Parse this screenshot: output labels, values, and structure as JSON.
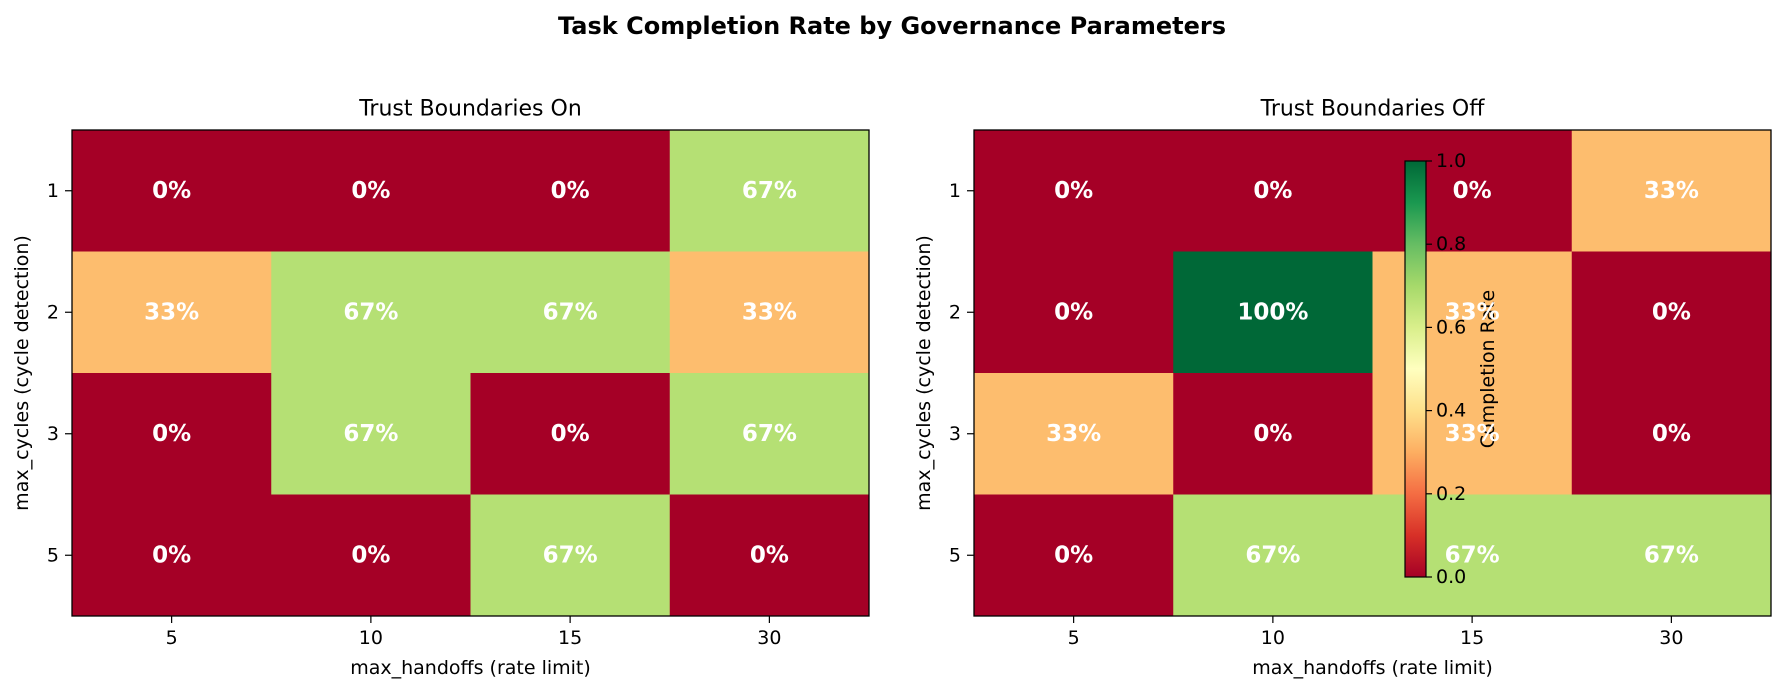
{
  "figure": {
    "title": "Task Completion Rate by Governance Parameters"
  },
  "colorbar": {
    "label": "Completion Rate",
    "ticks": [
      "0.0",
      "0.2",
      "0.4",
      "0.6",
      "0.8",
      "1.0"
    ],
    "range": [
      0.0,
      1.0
    ],
    "colormap": "RdYlGn",
    "placement": "inside right panel, between columns 10 and 15"
  },
  "chart_data": [
    {
      "type": "heatmap",
      "title": "Trust Boundaries On",
      "xlabel": "max_handoffs (rate limit)",
      "ylabel": "max_cycles (cycle detection)",
      "x_categories": [
        "5",
        "10",
        "15",
        "30"
      ],
      "y_categories": [
        "1",
        "2",
        "3",
        "5"
      ],
      "values": [
        [
          0.0,
          0.0,
          0.0,
          0.67
        ],
        [
          0.33,
          0.67,
          0.67,
          0.33
        ],
        [
          0.0,
          0.67,
          0.0,
          0.67
        ],
        [
          0.0,
          0.0,
          0.67,
          0.0
        ]
      ],
      "labels": [
        [
          "0%",
          "0%",
          "0%",
          "67%"
        ],
        [
          "33%",
          "67%",
          "67%",
          "33%"
        ],
        [
          "0%",
          "67%",
          "0%",
          "67%"
        ],
        [
          "0%",
          "0%",
          "67%",
          "0%"
        ]
      ]
    },
    {
      "type": "heatmap",
      "title": "Trust Boundaries Off",
      "xlabel": "max_handoffs (rate limit)",
      "ylabel": "max_cycles (cycle detection)",
      "x_categories": [
        "5",
        "10",
        "15",
        "30"
      ],
      "y_categories": [
        "1",
        "2",
        "3",
        "5"
      ],
      "values": [
        [
          0.0,
          0.0,
          0.0,
          0.33
        ],
        [
          0.0,
          1.0,
          0.33,
          0.0
        ],
        [
          0.33,
          0.0,
          0.33,
          0.0
        ],
        [
          0.0,
          0.67,
          0.67,
          0.67
        ]
      ],
      "labels": [
        [
          "0%",
          "0%",
          "0%",
          "33%"
        ],
        [
          "0%",
          "100%",
          "33%",
          "0%"
        ],
        [
          "33%",
          "0%",
          "33%",
          "0%"
        ],
        [
          "0%",
          "67%",
          "67%",
          "67%"
        ]
      ]
    }
  ]
}
